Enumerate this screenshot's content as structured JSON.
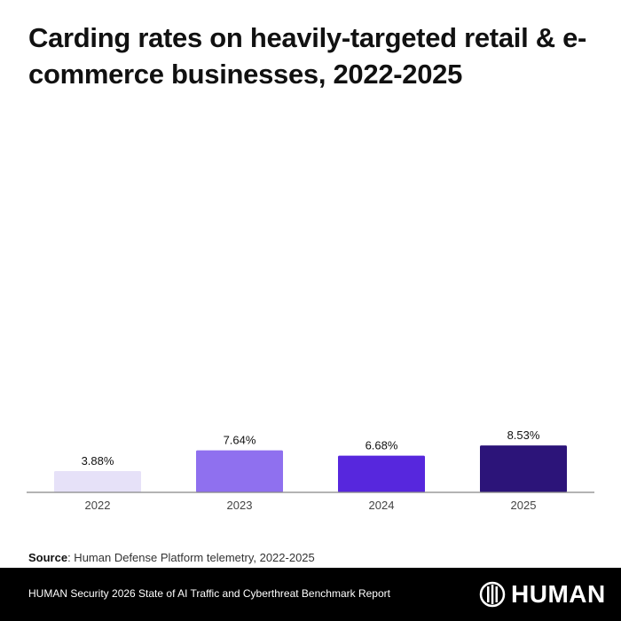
{
  "title": "Carding rates on heavily-targeted retail & e-commerce businesses, 2022-2025",
  "chart_data": {
    "type": "bar",
    "title": "Carding rates on heavily-targeted retail & e-commerce businesses, 2022-2025",
    "categories": [
      "2022",
      "2023",
      "2024",
      "2025"
    ],
    "values": [
      3.88,
      7.64,
      6.68,
      8.53
    ],
    "data_labels": [
      "3.88%",
      "7.64%",
      "6.68%",
      "8.53%"
    ],
    "colors": [
      "#e6e1f8",
      "#8f70ef",
      "#5727dd",
      "#2c1479"
    ],
    "xlabel": "",
    "ylabel": "",
    "grid": false,
    "legend": "none"
  },
  "source": {
    "label": "Source",
    "text": ": Human Defense Platform telemetry, 2022-2025"
  },
  "footer": {
    "report": "HUMAN Security 2026 State of AI Traffic and Cyberthreat Benchmark Report",
    "logo_text": "HUMAN"
  }
}
